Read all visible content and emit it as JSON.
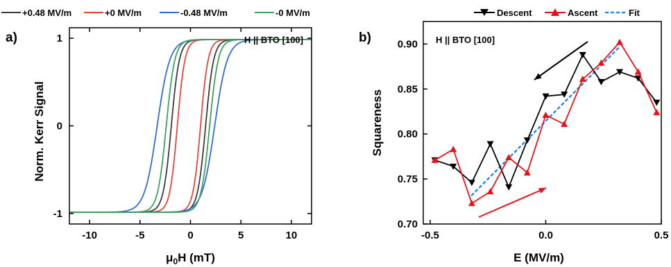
{
  "chart_data": [
    {
      "type": "line",
      "panel_label": "a)",
      "annotation": "H || BTO [100]",
      "xlabel_main": "μ",
      "xlabel_sub": "0",
      "xlabel_rest": "H (mT)",
      "ylabel": "Norm. Kerr Signal",
      "xlim": [
        -12,
        12
      ],
      "ylim": [
        -1.12,
        1.12
      ],
      "xticks": [
        -10,
        -5,
        0,
        5,
        10
      ],
      "yticks": [
        -1,
        0,
        1
      ],
      "ytick_labels": [
        "-1",
        "0",
        "1"
      ],
      "legend_position": "top",
      "series": [
        {
          "name": "+0.48 MV/m",
          "color": "#3a3a3a",
          "hc_desc": -1.9,
          "hc_asc": 1.5,
          "width": 0.8
        },
        {
          "name": "+0 MV/m",
          "color": "#e8443a",
          "hc_desc": -1.3,
          "hc_asc": 1.0,
          "width": 0.75
        },
        {
          "name": "-0.48 MV/m",
          "color": "#2f6bd6",
          "hc_desc": -3.3,
          "hc_asc": 2.4,
          "width": 1.25
        },
        {
          "name": "-0 MV/m",
          "color": "#3aa35c",
          "hc_desc": -2.4,
          "hc_asc": 1.9,
          "width": 0.85
        }
      ]
    },
    {
      "type": "line",
      "panel_label": "b)",
      "annotation": "H || BTO [100]",
      "xlabel": "E (MV/m)",
      "ylabel": "Squareness",
      "xlim": [
        -0.53,
        0.5
      ],
      "ylim": [
        0.7,
        0.925
      ],
      "xticks": [
        -0.5,
        0.0,
        0.5
      ],
      "xtick_labels": [
        "-0.5",
        "0.0",
        "0.5"
      ],
      "yticks": [
        0.7,
        0.75,
        0.8,
        0.85,
        0.9
      ],
      "ytick_labels": [
        "0.70",
        "0.75",
        "0.80",
        "0.85",
        "0.90"
      ],
      "legend_position": "top",
      "series": [
        {
          "name": "Descent",
          "color": "#000000",
          "marker": "triangle-down",
          "x": [
            -0.48,
            -0.4,
            -0.32,
            -0.24,
            -0.16,
            -0.08,
            0.0,
            0.08,
            0.16,
            0.24,
            0.32,
            0.4,
            0.48
          ],
          "y": [
            0.771,
            0.764,
            0.746,
            0.789,
            0.741,
            0.793,
            0.842,
            0.844,
            0.888,
            0.858,
            0.869,
            0.862,
            0.835
          ]
        },
        {
          "name": "Ascent",
          "color": "#e8131a",
          "marker": "triangle-up",
          "x": [
            -0.48,
            -0.4,
            -0.32,
            -0.24,
            -0.16,
            -0.08,
            0.0,
            0.08,
            0.16,
            0.24,
            0.32,
            0.4,
            0.48
          ],
          "y": [
            0.771,
            0.783,
            0.723,
            0.736,
            0.774,
            0.757,
            0.821,
            0.811,
            0.861,
            0.879,
            0.902,
            0.869,
            0.824
          ]
        },
        {
          "name": "Fit",
          "color": "#2f86e8",
          "style": "dotted",
          "x": [
            -0.32,
            0.32
          ],
          "y": [
            0.732,
            0.897
          ]
        }
      ]
    }
  ]
}
